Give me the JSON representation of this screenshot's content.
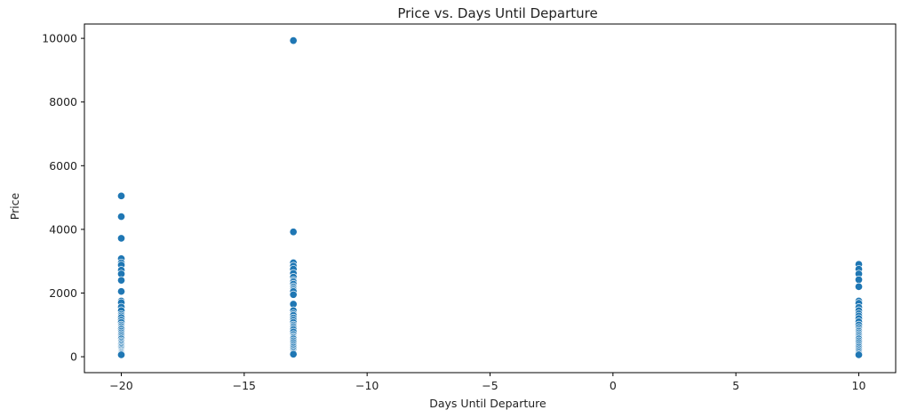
{
  "chart_data": {
    "type": "scatter",
    "title": "Price vs. Days Until Departure",
    "xlabel": "Days Until Departure",
    "ylabel": "Price",
    "xlim": [
      -21.5,
      11.5
    ],
    "ylim": [
      -500,
      10450
    ],
    "xticks": [
      -20,
      -15,
      -10,
      -5,
      0,
      5,
      10
    ],
    "yticks": [
      0,
      2000,
      4000,
      6000,
      8000,
      10000
    ],
    "grid": false,
    "marker_color": "#1f77b4",
    "series": [
      {
        "x": -20,
        "y": [
          5050,
          4400,
          3720,
          3080,
          2950,
          2880,
          2720,
          2600,
          2400,
          2050,
          1750,
          1700,
          1560,
          1450,
          1330,
          1280,
          1230,
          1150,
          1080,
          1000,
          950,
          900,
          860,
          800,
          750,
          700,
          650,
          600,
          560,
          500,
          460,
          420,
          380,
          340,
          300,
          260,
          220,
          180,
          150,
          120,
          90,
          60
        ]
      },
      {
        "x": -13,
        "y": [
          9930,
          3920,
          2950,
          2850,
          2750,
          2620,
          2500,
          2400,
          2350,
          2280,
          2200,
          2150,
          2100,
          2050,
          1950,
          1650,
          1450,
          1350,
          1300,
          1220,
          1150,
          1080,
          1000,
          950,
          900,
          850,
          780,
          700,
          640,
          600,
          560,
          500,
          450,
          400,
          350,
          300,
          250,
          200,
          150,
          110,
          80
        ]
      },
      {
        "x": 10,
        "y": [
          2900,
          2750,
          2600,
          2420,
          2200,
          1750,
          1680,
          1550,
          1450,
          1350,
          1280,
          1200,
          1100,
          1000,
          920,
          850,
          800,
          750,
          700,
          650,
          600,
          560,
          500,
          450,
          400,
          350,
          300,
          250,
          200,
          150,
          100,
          60
        ]
      }
    ]
  }
}
